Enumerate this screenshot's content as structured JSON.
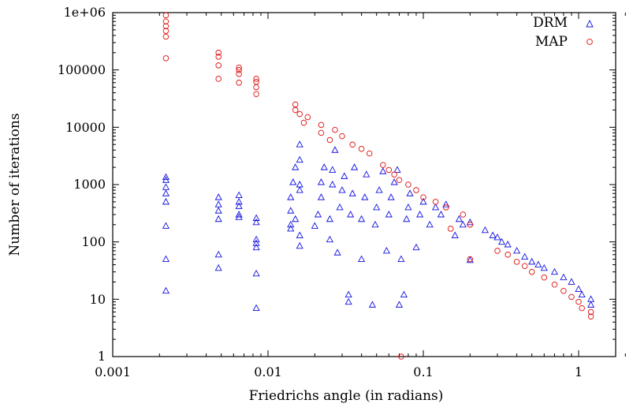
{
  "chart_data": {
    "type": "scatter",
    "xlabel": "Friedrichs angle (in radians)",
    "ylabel": "Number of iterations",
    "xscale": "log",
    "yscale": "log",
    "xlim": [
      0.001,
      2
    ],
    "ylim": [
      1,
      1000000
    ],
    "x_ticks": [
      0.001,
      0.01,
      0.1,
      1
    ],
    "x_tick_labels": [
      "0.001",
      "0.01",
      "0.1",
      "1"
    ],
    "y_ticks": [
      1,
      10,
      100,
      1000,
      10000,
      100000,
      1000000
    ],
    "y_tick_labels": [
      "1",
      "10",
      "100",
      "1000",
      "10000",
      "100000",
      "1e+06"
    ],
    "legend_position": "top-right",
    "series": [
      {
        "name": "DRM",
        "marker": "triangle",
        "color": "#1010e0",
        "points": [
          [
            0.0022,
            14
          ],
          [
            0.0022,
            50
          ],
          [
            0.0022,
            190
          ],
          [
            0.0022,
            500
          ],
          [
            0.0022,
            700
          ],
          [
            0.0022,
            900
          ],
          [
            0.0022,
            1200
          ],
          [
            0.0022,
            1350
          ],
          [
            0.0048,
            35
          ],
          [
            0.0048,
            60
          ],
          [
            0.0048,
            250
          ],
          [
            0.0048,
            350
          ],
          [
            0.0048,
            450
          ],
          [
            0.0048,
            600
          ],
          [
            0.0065,
            270
          ],
          [
            0.0065,
            300
          ],
          [
            0.0065,
            420
          ],
          [
            0.0065,
            500
          ],
          [
            0.0065,
            650
          ],
          [
            0.0084,
            7
          ],
          [
            0.0084,
            28
          ],
          [
            0.0084,
            80
          ],
          [
            0.0084,
            95
          ],
          [
            0.0084,
            110
          ],
          [
            0.0084,
            220
          ],
          [
            0.0084,
            260
          ],
          [
            0.014,
            170
          ],
          [
            0.014,
            200
          ],
          [
            0.014,
            350
          ],
          [
            0.014,
            600
          ],
          [
            0.0145,
            1100
          ],
          [
            0.015,
            250
          ],
          [
            0.015,
            2000
          ],
          [
            0.016,
            85
          ],
          [
            0.016,
            130
          ],
          [
            0.016,
            800
          ],
          [
            0.016,
            1000
          ],
          [
            0.016,
            2700
          ],
          [
            0.016,
            5000
          ],
          [
            0.02,
            190
          ],
          [
            0.021,
            300
          ],
          [
            0.022,
            600
          ],
          [
            0.022,
            1100
          ],
          [
            0.023,
            2000
          ],
          [
            0.025,
            110
          ],
          [
            0.025,
            250
          ],
          [
            0.026,
            1000
          ],
          [
            0.026,
            1800
          ],
          [
            0.027,
            4000
          ],
          [
            0.028,
            65
          ],
          [
            0.029,
            400
          ],
          [
            0.03,
            800
          ],
          [
            0.031,
            1400
          ],
          [
            0.033,
            9
          ],
          [
            0.033,
            12
          ],
          [
            0.034,
            300
          ],
          [
            0.035,
            700
          ],
          [
            0.036,
            2000
          ],
          [
            0.04,
            50
          ],
          [
            0.04,
            250
          ],
          [
            0.042,
            600
          ],
          [
            0.043,
            1500
          ],
          [
            0.047,
            8
          ],
          [
            0.049,
            200
          ],
          [
            0.05,
            400
          ],
          [
            0.052,
            800
          ],
          [
            0.055,
            1700
          ],
          [
            0.058,
            70
          ],
          [
            0.06,
            300
          ],
          [
            0.062,
            600
          ],
          [
            0.065,
            1100
          ],
          [
            0.068,
            1800
          ],
          [
            0.07,
            8
          ],
          [
            0.072,
            50
          ],
          [
            0.075,
            12
          ],
          [
            0.078,
            250
          ],
          [
            0.08,
            400
          ],
          [
            0.082,
            700
          ],
          [
            0.09,
            80
          ],
          [
            0.095,
            300
          ],
          [
            0.1,
            500
          ],
          [
            0.11,
            200
          ],
          [
            0.12,
            400
          ],
          [
            0.13,
            300
          ],
          [
            0.14,
            450
          ],
          [
            0.16,
            130
          ],
          [
            0.17,
            250
          ],
          [
            0.18,
            200
          ],
          [
            0.2,
            48
          ],
          [
            0.2,
            220
          ],
          [
            0.25,
            160
          ],
          [
            0.28,
            130
          ],
          [
            0.3,
            120
          ],
          [
            0.32,
            100
          ],
          [
            0.35,
            90
          ],
          [
            0.4,
            70
          ],
          [
            0.45,
            55
          ],
          [
            0.5,
            45
          ],
          [
            0.55,
            40
          ],
          [
            0.6,
            35
          ],
          [
            0.7,
            30
          ],
          [
            0.8,
            24
          ],
          [
            0.9,
            20
          ],
          [
            1.0,
            15
          ],
          [
            1.05,
            12
          ],
          [
            1.2,
            10
          ],
          [
            1.2,
            8
          ]
        ]
      },
      {
        "name": "MAP",
        "marker": "circle",
        "color": "#e01010",
        "points": [
          [
            0.0022,
            160000
          ],
          [
            0.0022,
            380000
          ],
          [
            0.0022,
            480000
          ],
          [
            0.0022,
            580000
          ],
          [
            0.0022,
            700000
          ],
          [
            0.0022,
            900000
          ],
          [
            0.0048,
            70000
          ],
          [
            0.0048,
            120000
          ],
          [
            0.0048,
            170000
          ],
          [
            0.0048,
            200000
          ],
          [
            0.0065,
            60000
          ],
          [
            0.0065,
            85000
          ],
          [
            0.0065,
            100000
          ],
          [
            0.0065,
            110000
          ],
          [
            0.0084,
            38000
          ],
          [
            0.0084,
            50000
          ],
          [
            0.0084,
            62000
          ],
          [
            0.0084,
            70000
          ],
          [
            0.015,
            20000
          ],
          [
            0.015,
            25000
          ],
          [
            0.016,
            17000
          ],
          [
            0.017,
            12000
          ],
          [
            0.018,
            15000
          ],
          [
            0.022,
            8000
          ],
          [
            0.022,
            11000
          ],
          [
            0.025,
            6000
          ],
          [
            0.027,
            9000
          ],
          [
            0.03,
            7000
          ],
          [
            0.035,
            5000
          ],
          [
            0.04,
            4200
          ],
          [
            0.045,
            3500
          ],
          [
            0.055,
            2200
          ],
          [
            0.06,
            1800
          ],
          [
            0.065,
            1500
          ],
          [
            0.07,
            1200
          ],
          [
            0.072,
            1
          ],
          [
            0.08,
            1000
          ],
          [
            0.09,
            800
          ],
          [
            0.1,
            600
          ],
          [
            0.12,
            500
          ],
          [
            0.14,
            400
          ],
          [
            0.15,
            170
          ],
          [
            0.18,
            300
          ],
          [
            0.2,
            200
          ],
          [
            0.2,
            50
          ],
          [
            0.3,
            70
          ],
          [
            0.35,
            60
          ],
          [
            0.4,
            45
          ],
          [
            0.45,
            38
          ],
          [
            0.5,
            30
          ],
          [
            0.6,
            24
          ],
          [
            0.7,
            18
          ],
          [
            0.8,
            14
          ],
          [
            0.9,
            11
          ],
          [
            1.0,
            9
          ],
          [
            1.05,
            7
          ],
          [
            1.2,
            6
          ],
          [
            1.2,
            5
          ]
        ]
      }
    ]
  }
}
